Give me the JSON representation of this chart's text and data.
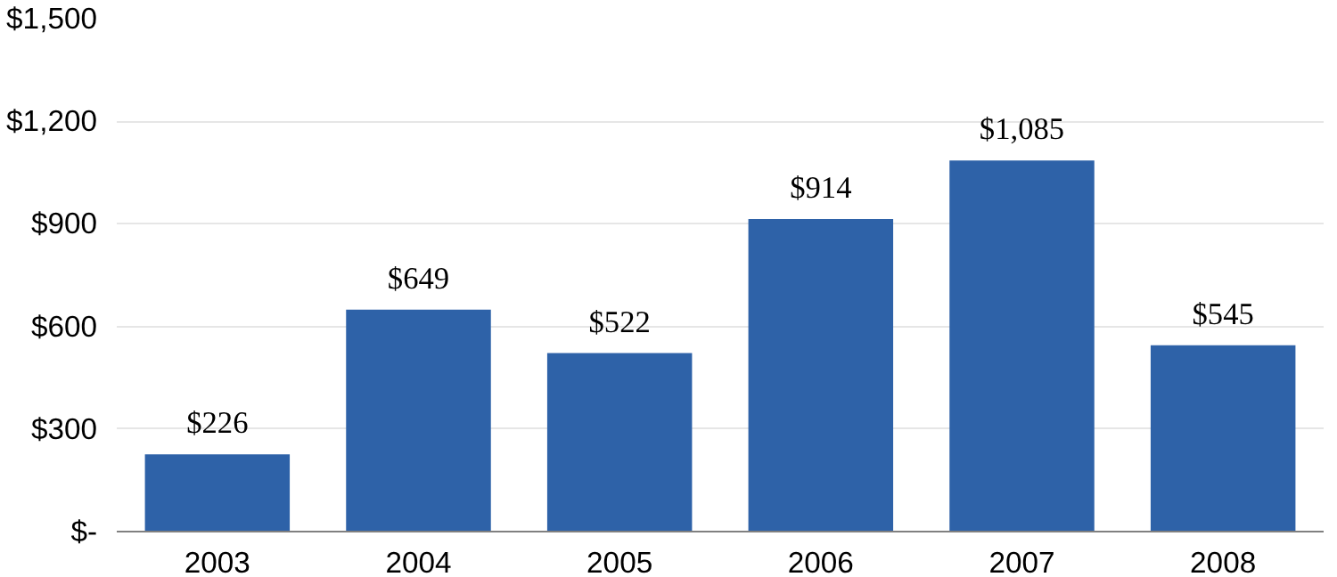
{
  "chart_data": {
    "type": "bar",
    "categories": [
      "2003",
      "2004",
      "2005",
      "2006",
      "2007",
      "2008"
    ],
    "values": [
      226,
      649,
      522,
      914,
      1085,
      545
    ],
    "value_labels": [
      "$226",
      "$649",
      "$522",
      "$914",
      "$1,085",
      "$545"
    ],
    "color": "#2e62a8",
    "ylim": [
      0,
      1500
    ],
    "yticks": [
      {
        "value": 0,
        "label": "$-"
      },
      {
        "value": 300,
        "label": "$300"
      },
      {
        "value": 600,
        "label": "$600"
      },
      {
        "value": 900,
        "label": "$900"
      },
      {
        "value": 1200,
        "label": "$1,200"
      },
      {
        "value": 1500,
        "label": "$1,500"
      }
    ],
    "grid": "y"
  }
}
